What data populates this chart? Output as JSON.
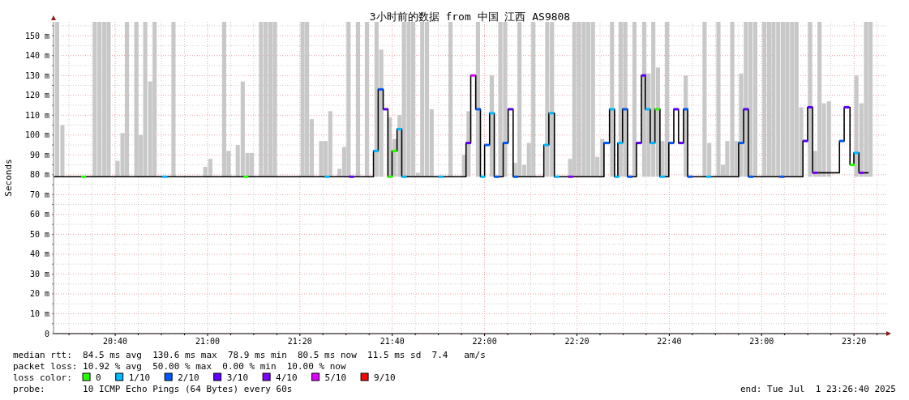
{
  "chart_data": {
    "type": "step",
    "title": "3小时前的数据 from 中国 江西 AS9808",
    "ylabel": "Seconds",
    "xlim": [
      20.444,
      23.45
    ],
    "ylim": [
      0,
      157
    ],
    "xticks": [
      {
        "value": 20.5,
        "label": null
      },
      {
        "value": 20.5833,
        "label": null
      },
      {
        "value": 20.6667,
        "label": "20:40"
      },
      {
        "value": 20.75,
        "label": null
      },
      {
        "value": 20.8333,
        "label": null
      },
      {
        "value": 20.9167,
        "label": null
      },
      {
        "value": 21,
        "label": "21:00"
      },
      {
        "value": 21.0833,
        "label": null
      },
      {
        "value": 21.1667,
        "label": null
      },
      {
        "value": 21.25,
        "label": null
      },
      {
        "value": 21.3333,
        "label": "21:20"
      },
      {
        "value": 21.4167,
        "label": null
      },
      {
        "value": 21.5,
        "label": null
      },
      {
        "value": 21.5833,
        "label": null
      },
      {
        "value": 21.6667,
        "label": "21:40"
      },
      {
        "value": 21.75,
        "label": null
      },
      {
        "value": 21.8333,
        "label": null
      },
      {
        "value": 21.9167,
        "label": null
      },
      {
        "value": 22,
        "label": "22:00"
      },
      {
        "value": 22.0833,
        "label": null
      },
      {
        "value": 22.1667,
        "label": null
      },
      {
        "value": 22.25,
        "label": null
      },
      {
        "value": 22.3333,
        "label": "22:20"
      },
      {
        "value": 22.4167,
        "label": null
      },
      {
        "value": 22.5,
        "label": null
      },
      {
        "value": 22.5833,
        "label": null
      },
      {
        "value": 22.6667,
        "label": "22:40"
      },
      {
        "value": 22.75,
        "label": null
      },
      {
        "value": 22.8333,
        "label": null
      },
      {
        "value": 22.9167,
        "label": null
      },
      {
        "value": 23,
        "label": "23:00"
      },
      {
        "value": 23.0833,
        "label": null
      },
      {
        "value": 23.1667,
        "label": null
      },
      {
        "value": 23.25,
        "label": null
      },
      {
        "value": 23.3333,
        "label": "23:20"
      },
      {
        "value": 23.4167,
        "label": null
      }
    ],
    "yticks": [
      0,
      {
        "value": 5,
        "label": null
      },
      {
        "value": 10,
        "label": "10 m"
      },
      {
        "value": 15,
        "label": null
      },
      {
        "value": 20,
        "label": "20 m"
      },
      {
        "value": 25,
        "label": null
      },
      {
        "value": 30,
        "label": "30 m"
      },
      {
        "value": 35,
        "label": null
      },
      {
        "value": 40,
        "label": "40 m"
      },
      {
        "value": 45,
        "label": null
      },
      {
        "value": 50,
        "label": "50 m"
      },
      {
        "value": 55,
        "label": null
      },
      {
        "value": 60,
        "label": "60 m"
      },
      {
        "value": 65,
        "label": null
      },
      {
        "value": 70,
        "label": "70 m"
      },
      {
        "value": 75,
        "label": null
      },
      {
        "value": 80,
        "label": "80 m"
      },
      {
        "value": 85,
        "label": null
      },
      {
        "value": 90,
        "label": "90 m"
      },
      {
        "value": 95,
        "label": null
      },
      {
        "value": 100,
        "label": "100 m"
      },
      {
        "value": 105,
        "label": null
      },
      {
        "value": 110,
        "label": "110 m"
      },
      {
        "value": 115,
        "label": null
      },
      {
        "value": 120,
        "label": "120 m"
      },
      {
        "value": 125,
        "label": null
      },
      {
        "value": 130,
        "label": "130 m"
      },
      {
        "value": 135,
        "label": null
      },
      {
        "value": 140,
        "label": "140 m"
      },
      {
        "value": 145,
        "label": null
      },
      {
        "value": 150,
        "label": "150 m"
      },
      {
        "value": 155,
        "label": null
      }
    ],
    "grid": true,
    "legend": "bottom",
    "legend_title": "loss color:",
    "annotations": [
      "median rtt:  84.5 ms avg  130.6 ms max  78.9 ms min  80.5 ms now  11.5 ms sd  7.4   am/s",
      "packet loss: 10.92 % avg  50.00 % max  0.00 % min  10.00 % now",
      "probe:       10 ICMP Echo Pings (64 Bytes) every 60s",
      "end: Tue Jul  1 23:26:40 2025"
    ],
    "series": [
      {
        "type": "bar",
        "color": "#c8c8c8",
        "x": [
          20.457,
          20.476,
          20.593,
          20.61,
          20.627,
          20.643,
          20.675,
          20.693,
          20.709,
          20.743,
          20.759,
          20.775,
          20.793,
          20.809,
          20.877,
          20.992,
          21.01,
          21.06,
          21.076,
          21.109,
          21.127,
          21.144,
          21.16,
          21.193,
          21.21,
          21.227,
          21.243,
          21.343,
          21.359,
          21.376,
          21.41,
          21.426,
          21.443,
          21.476,
          21.493,
          21.509,
          21.543,
          21.575,
          21.61,
          21.627,
          21.657,
          21.675,
          21.693,
          21.709,
          21.726,
          21.742,
          21.759,
          21.775,
          21.792,
          21.809,
          21.877,
          21.926,
          21.942,
          21.976,
          22.026,
          22.057,
          22.074,
          22.11,
          22.126,
          22.143,
          22.16,
          22.176,
          22.226,
          22.243,
          22.309,
          22.324,
          22.341,
          22.358,
          22.374,
          22.391,
          22.407,
          22.425,
          22.46,
          22.491,
          22.508,
          22.541,
          22.576,
          22.592,
          22.609,
          22.626,
          22.642,
          22.658,
          22.726,
          22.794,
          22.811,
          22.844,
          22.86,
          22.876,
          22.894,
          22.91,
          22.926,
          22.943,
          22.96,
          22.977,
          23.01,
          23.027,
          23.043,
          23.06,
          23.077,
          23.093,
          23.11,
          23.126,
          23.143,
          23.175,
          23.193,
          23.209,
          23.225,
          23.243,
          23.342,
          23.36,
          23.377,
          23.393
        ],
        "values": [
          78,
          26,
          78,
          78,
          78,
          78,
          8,
          22,
          78,
          78,
          21,
          78,
          48,
          78,
          78,
          5,
          9,
          78,
          13,
          16,
          48,
          12,
          12,
          78,
          78,
          78,
          78,
          78,
          78,
          29,
          18,
          18,
          33,
          4,
          15,
          78,
          78,
          78,
          78,
          64,
          30,
          19,
          31,
          78,
          78,
          78,
          2,
          78,
          78,
          34,
          78,
          11,
          33,
          78,
          51,
          78,
          78,
          7,
          78,
          6,
          17,
          78,
          78,
          78,
          9,
          78,
          78,
          78,
          78,
          78,
          10,
          19,
          78,
          78,
          78,
          78,
          78,
          52,
          78,
          55,
          18,
          78,
          51,
          78,
          17,
          78,
          6,
          18,
          78,
          18,
          52,
          78,
          78,
          78,
          78,
          78,
          78,
          78,
          78,
          78,
          78,
          78,
          35,
          78,
          13,
          78,
          37,
          38,
          51,
          37,
          78,
          78
        ],
        "base": [
          79,
          79,
          79,
          79,
          79,
          79,
          79,
          79,
          79,
          79,
          79,
          79,
          79,
          79,
          79,
          79,
          79,
          79,
          79,
          79,
          79,
          79,
          79,
          79,
          79,
          79,
          79,
          79,
          79,
          79,
          79,
          79,
          79,
          79,
          79,
          79,
          79,
          79,
          79,
          79,
          79,
          79,
          79,
          79,
          79,
          79,
          79,
          79,
          79,
          79,
          79,
          79,
          79,
          79,
          79,
          79,
          79,
          79,
          79,
          79,
          79,
          79,
          79,
          79,
          79,
          79,
          79,
          79,
          79,
          79,
          79,
          79,
          79,
          79,
          79,
          79,
          79,
          79,
          79,
          79,
          79,
          79,
          79,
          79,
          79,
          79,
          79,
          79,
          79,
          79,
          79,
          79,
          79,
          79,
          79,
          79,
          79,
          79,
          79,
          79,
          79,
          79,
          79,
          79,
          79,
          79,
          79,
          79,
          79,
          79,
          79,
          79
        ]
      },
      {
        "color": "#000000",
        "x": [
          20.444,
          21.599,
          21.616,
          21.634,
          21.651,
          21.666,
          21.684,
          21.701,
          21.933,
          21.95,
          21.968,
          21.985,
          22.0,
          22.018,
          22.035,
          22.067,
          22.085,
          22.103,
          22.214,
          22.232,
          22.252,
          22.431,
          22.451,
          22.469,
          22.481,
          22.498,
          22.516,
          22.548,
          22.566,
          22.58,
          22.598,
          22.615,
          22.633,
          22.665,
          22.683,
          22.7,
          22.718,
          22.733,
          22.917,
          22.935,
          22.952,
          23.149,
          23.166,
          23.184,
          23.281,
          23.298,
          23.319,
          23.333,
          23.351,
          23.386
        ],
        "values": [
          79,
          92,
          123,
          113,
          79,
          92,
          103,
          79,
          96,
          130,
          113,
          79,
          95,
          111,
          79,
          96,
          113,
          79,
          95,
          111,
          79,
          96,
          113,
          79,
          96,
          113,
          79,
          96,
          130,
          113,
          96,
          113,
          79,
          96,
          113,
          96,
          113,
          79,
          96,
          113,
          79,
          97,
          114,
          81,
          97,
          114,
          85,
          91,
          81,
          81
        ]
      },
      {
        "type": "scatter",
        "name": "0",
        "color": "#26ff00",
        "x": [
          20.544,
          21.13,
          21.651,
          21.666,
          22.615,
          23.319
        ],
        "values": [
          79,
          79,
          79,
          92,
          113,
          85
        ]
      },
      {
        "type": "scatter",
        "name": "1/10",
        "color": "#00b8ff",
        "x": [
          20.837,
          21.423,
          21.599,
          21.684,
          21.701,
          21.833,
          21.985,
          22.018,
          22.214,
          22.232,
          22.252,
          22.451,
          22.469,
          22.481,
          22.58,
          22.598,
          22.633,
          22.8,
          23.333
        ],
        "values": [
          79,
          79,
          92,
          103,
          79,
          79,
          79,
          111,
          95,
          111,
          79,
          113,
          79,
          96,
          113,
          96,
          79,
          79,
          91
        ]
      },
      {
        "type": "scatter",
        "name": "2/10",
        "color": "#0059ff",
        "x": [
          21.616,
          21.968,
          22.0,
          22.035,
          22.067,
          22.103,
          22.431,
          22.498,
          22.516,
          22.665,
          22.718,
          22.733,
          22.917,
          22.952,
          23.064,
          23.281
        ],
        "values": [
          123,
          113,
          95,
          79,
          96,
          79,
          96,
          113,
          79,
          96,
          113,
          79,
          96,
          79,
          79,
          97
        ]
      },
      {
        "type": "scatter",
        "name": "3/10",
        "color": "#5e00ff",
        "x": [
          21.511,
          21.634,
          21.933,
          22.085,
          22.548,
          22.566,
          22.683,
          22.7,
          22.935,
          23.149,
          23.166,
          23.298
        ],
        "values": [
          79,
          113,
          96,
          113,
          96,
          130,
          113,
          96,
          113,
          97,
          114,
          114
        ]
      },
      {
        "type": "scatter",
        "name": "4/10",
        "color": "#7e00ff",
        "x": [
          22.302,
          23.184,
          23.351
        ],
        "values": [
          79,
          81,
          81
        ]
      },
      {
        "type": "scatter",
        "name": "5/10",
        "color": "#dd00ff",
        "x": [
          21.95
        ],
        "values": [
          130
        ]
      },
      {
        "type": "scatter",
        "name": "9/10",
        "color": "#ff0000"
      }
    ]
  }
}
